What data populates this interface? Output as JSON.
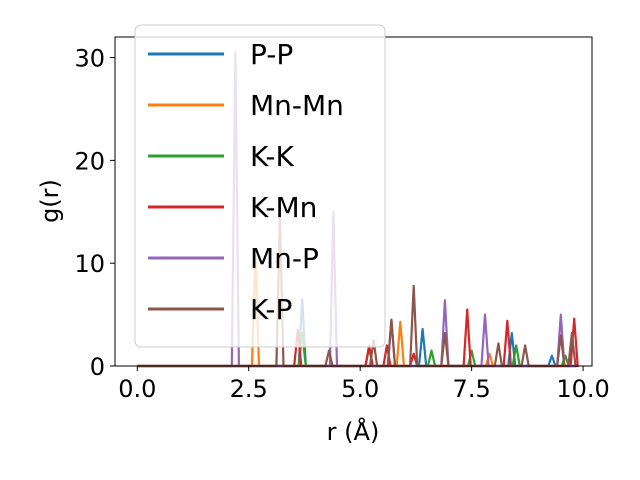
{
  "chart_data": {
    "type": "line",
    "xlabel": "r (Å)",
    "ylabel": "g(r)",
    "xlim": [
      -0.5,
      10.2
    ],
    "ylim": [
      0,
      32
    ],
    "xticks": [
      "0.0",
      "2.5",
      "5.0",
      "7.5",
      "10.0"
    ],
    "yticks": [
      "0",
      "10",
      "20",
      "30"
    ],
    "legend_placement": "upper-left",
    "grid": false,
    "series": [
      {
        "name": "P-P",
        "color": "#1f77b4",
        "peaks": [
          [
            3.7,
            6.5
          ],
          [
            6.4,
            3.6
          ],
          [
            8.4,
            3.2
          ],
          [
            9.3,
            1.0
          ]
        ]
      },
      {
        "name": "Mn-Mn",
        "color": "#ff7f0e",
        "peaks": [
          [
            2.65,
            11.0
          ],
          [
            5.9,
            4.3
          ],
          [
            7.9,
            1.2
          ],
          [
            9.6,
            1.0
          ]
        ]
      },
      {
        "name": "K-K",
        "color": "#2ca02c",
        "peaks": [
          [
            3.7,
            3.2
          ],
          [
            5.2,
            1.8
          ],
          [
            6.6,
            1.5
          ],
          [
            7.5,
            1.5
          ],
          [
            8.5,
            2.0
          ],
          [
            9.6,
            1.0
          ]
        ]
      },
      {
        "name": "K-Mn",
        "color": "#d62728",
        "peaks": [
          [
            3.6,
            3.5
          ],
          [
            5.2,
            2.0
          ],
          [
            5.6,
            2.0
          ],
          [
            6.2,
            1.2
          ],
          [
            7.4,
            5.5
          ],
          [
            8.3,
            4.4
          ],
          [
            9.8,
            4.6
          ]
        ]
      },
      {
        "name": "Mn-P",
        "color": "#9467bd",
        "peaks": [
          [
            2.2,
            30.5
          ],
          [
            4.4,
            15.0
          ],
          [
            5.7,
            4.5
          ],
          [
            6.9,
            6.4
          ],
          [
            7.8,
            5.0
          ],
          [
            9.5,
            5.0
          ]
        ]
      },
      {
        "name": "K-P",
        "color": "#8c564b",
        "peaks": [
          [
            3.2,
            14.5
          ],
          [
            4.3,
            1.5
          ],
          [
            5.3,
            2.5
          ],
          [
            5.7,
            4.5
          ],
          [
            6.2,
            7.8
          ],
          [
            6.9,
            3.2
          ],
          [
            8.1,
            2.2
          ],
          [
            8.7,
            2.0
          ],
          [
            9.5,
            3.0
          ],
          [
            9.75,
            3.2
          ]
        ]
      }
    ]
  }
}
